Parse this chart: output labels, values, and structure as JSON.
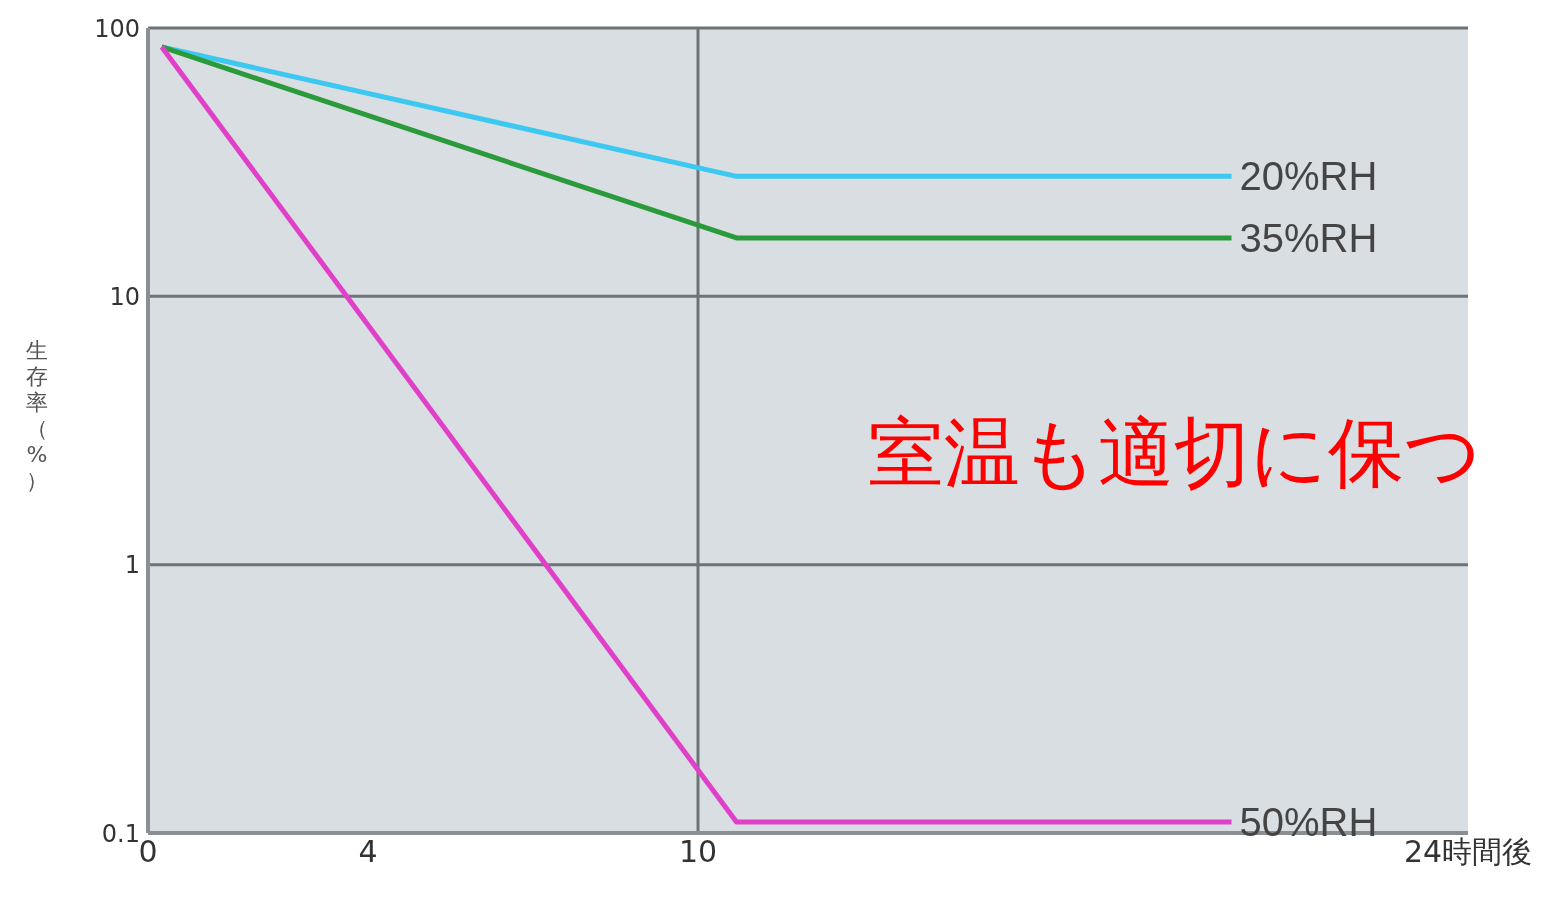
{
  "chart_data": {
    "type": "line",
    "ylabel": "生存率（%）",
    "log": "y",
    "x": [
      0.25,
      10.7,
      19.7
    ],
    "series": [
      {
        "name": "20%RH",
        "color": "#3cc8f0",
        "values": [
          85,
          28,
          28
        ]
      },
      {
        "name": "35%RH",
        "color": "#2a9a3a",
        "values": [
          85,
          16.5,
          16.5
        ]
      },
      {
        "name": "50%RH",
        "color": "#e040c8",
        "values": [
          85,
          0.11,
          0.11
        ]
      }
    ],
    "xlim": [
      0,
      24
    ],
    "xticks": [
      0,
      4,
      10,
      {
        "value": 24,
        "label": "24時間後"
      }
    ],
    "ylim": [
      0.1,
      100
    ],
    "yticks": [
      0.1,
      1,
      10,
      100
    ],
    "grid": "y",
    "ref_lines": [
      {
        "axis": "x",
        "value": 10,
        "color": "#6e7378"
      }
    ],
    "marker": "none",
    "line_style": "solid",
    "legend": false,
    "annotations": [
      "室温も適切に保つ"
    ]
  }
}
